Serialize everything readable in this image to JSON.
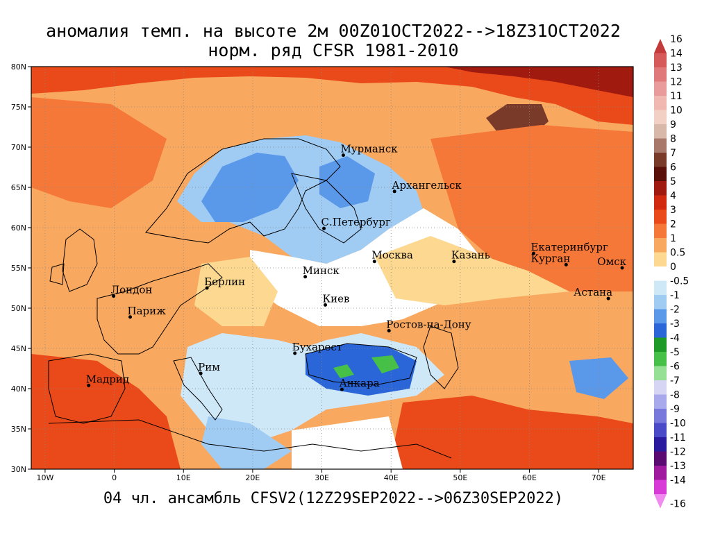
{
  "title_line1": "аномалия темп. на высоте 2м 00Z01OCT2022-->18Z31OCT2022",
  "title_line2": "норм. ряд CFSR 1981-2010",
  "subtitle": "04 чл. ансамбль CFSV2(12Z29SEP2022-->06Z30SEP2022)",
  "map": {
    "lon_range": [
      -12,
      75
    ],
    "lat_range": [
      30,
      80
    ],
    "lon_ticks": [
      {
        "lon": -10,
        "label": "10W"
      },
      {
        "lon": 0,
        "label": "0"
      },
      {
        "lon": 10,
        "label": "10E"
      },
      {
        "lon": 20,
        "label": "20E"
      },
      {
        "lon": 30,
        "label": "30E"
      },
      {
        "lon": 40,
        "label": "40E"
      },
      {
        "lon": 50,
        "label": "50E"
      },
      {
        "lon": 60,
        "label": "60E"
      },
      {
        "lon": 70,
        "label": "70E"
      }
    ],
    "lat_ticks": [
      {
        "lat": 30,
        "label": "30N"
      },
      {
        "lat": 35,
        "label": "35N"
      },
      {
        "lat": 40,
        "label": "40N"
      },
      {
        "lat": 45,
        "label": "45N"
      },
      {
        "lat": 50,
        "label": "50N"
      },
      {
        "lat": 55,
        "label": "55N"
      },
      {
        "lat": 60,
        "label": "60N"
      },
      {
        "lat": 65,
        "label": "65N"
      },
      {
        "lat": 70,
        "label": "70N"
      },
      {
        "lat": 75,
        "label": "75N"
      },
      {
        "lat": 80,
        "label": "80N"
      }
    ],
    "cities": [
      {
        "name": "Мурманск",
        "lon": 33.1,
        "lat": 69.0
      },
      {
        "name": "Архангельск",
        "lon": 40.5,
        "lat": 64.5
      },
      {
        "name": "С.Петербург",
        "lon": 30.3,
        "lat": 59.9
      },
      {
        "name": "Москва",
        "lon": 37.6,
        "lat": 55.8
      },
      {
        "name": "Казань",
        "lon": 49.1,
        "lat": 55.8
      },
      {
        "name": "Екатеринбург",
        "lon": 60.6,
        "lat": 56.8
      },
      {
        "name": "Курган",
        "lon": 65.3,
        "lat": 55.4
      },
      {
        "name": "Омск",
        "lon": 73.4,
        "lat": 55.0
      },
      {
        "name": "Астана",
        "lon": 71.4,
        "lat": 51.2
      },
      {
        "name": "Минск",
        "lon": 27.6,
        "lat": 53.9
      },
      {
        "name": "Берлин",
        "lon": 13.4,
        "lat": 52.5
      },
      {
        "name": "Лондон",
        "lon": -0.1,
        "lat": 51.5
      },
      {
        "name": "Париж",
        "lon": 2.3,
        "lat": 48.9
      },
      {
        "name": "Киев",
        "lon": 30.5,
        "lat": 50.4
      },
      {
        "name": "Ростов-на-Дону",
        "lon": 39.7,
        "lat": 47.2
      },
      {
        "name": "Бухарест",
        "lon": 26.1,
        "lat": 44.4
      },
      {
        "name": "Рим",
        "lon": 12.5,
        "lat": 41.9
      },
      {
        "name": "Мадрид",
        "lon": -3.7,
        "lat": 40.4
      },
      {
        "name": "Анкара",
        "lon": 32.9,
        "lat": 39.9
      }
    ]
  },
  "legend": [
    {
      "label": "16",
      "color": "#c23a3a"
    },
    {
      "label": "14",
      "color": "#d65a5a"
    },
    {
      "label": "13",
      "color": "#e07a7a"
    },
    {
      "label": "12",
      "color": "#e99a9a"
    },
    {
      "label": "11",
      "color": "#f0b8b0"
    },
    {
      "label": "10",
      "color": "#f3d0c4"
    },
    {
      "label": "9",
      "color": "#d8b8a8"
    },
    {
      "label": "8",
      "color": "#a8786a"
    },
    {
      "label": "7",
      "color": "#7a3a2a"
    },
    {
      "label": "6",
      "color": "#5a1008"
    },
    {
      "label": "5",
      "color": "#a01a10"
    },
    {
      "label": "4",
      "color": "#d22a10"
    },
    {
      "label": "3",
      "color": "#ea4a1a"
    },
    {
      "label": "2",
      "color": "#f57838"
    },
    {
      "label": "1",
      "color": "#f9a860"
    },
    {
      "label": "0.5",
      "color": "#fcd890"
    },
    {
      "label": "0",
      "color": "#ffffff"
    },
    {
      "label": "-0.5",
      "color": "#cfe8f8"
    },
    {
      "label": "-1",
      "color": "#a0ccf4"
    },
    {
      "label": "-2",
      "color": "#5a98ea"
    },
    {
      "label": "-3",
      "color": "#2a66d8"
    },
    {
      "label": "-4",
      "color": "#1e9a28"
    },
    {
      "label": "-5",
      "color": "#46c046"
    },
    {
      "label": "-6",
      "color": "#96e096"
    },
    {
      "label": "-7",
      "color": "#d6d6f4"
    },
    {
      "label": "-8",
      "color": "#a8a8ec"
    },
    {
      "label": "-9",
      "color": "#7878dc"
    },
    {
      "label": "-10",
      "color": "#4a4ac8"
    },
    {
      "label": "-11",
      "color": "#2a1aa0"
    },
    {
      "label": "-12",
      "color": "#5a0a70"
    },
    {
      "label": "-13",
      "color": "#a01aa0"
    },
    {
      "label": "-14",
      "color": "#d83ad8"
    },
    {
      "label": "-16",
      "color": "#f08af0"
    }
  ]
}
